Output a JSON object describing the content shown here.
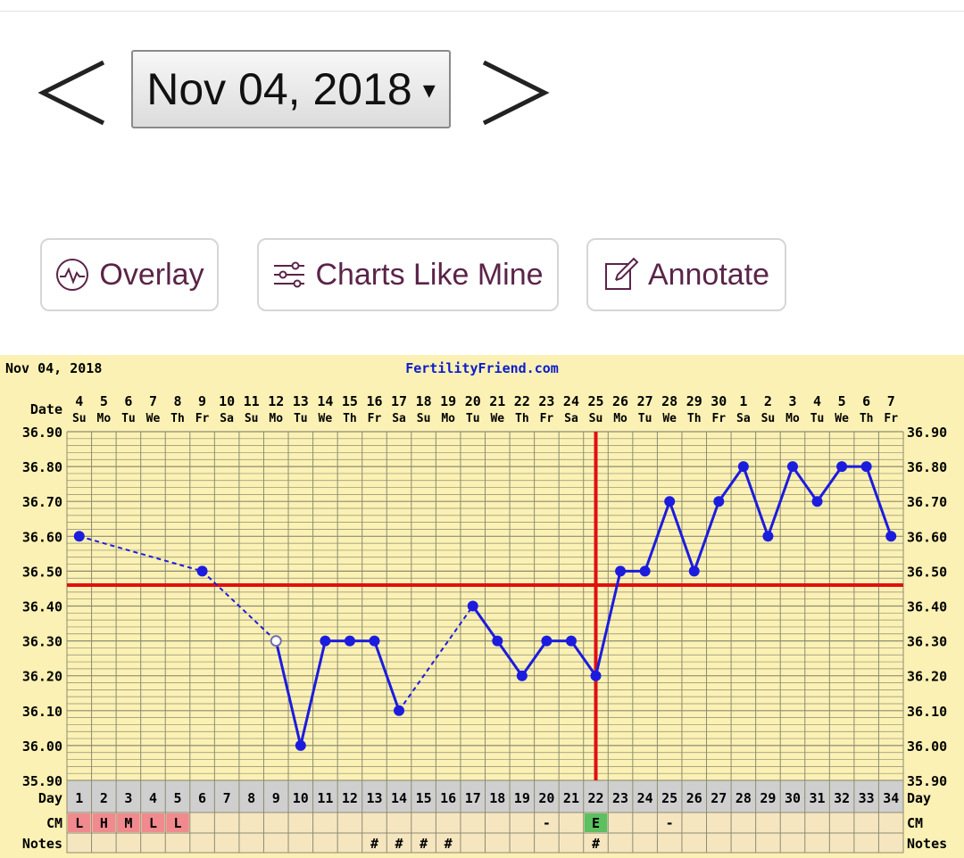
{
  "nav": {
    "date_label": "Nov 04, 2018",
    "caret": "▾",
    "prev_icon": "chevron-left-icon",
    "next_icon": "chevron-right-icon"
  },
  "toolbar": {
    "overlay_label": "Overlay",
    "charts_like_mine_label": "Charts Like Mine",
    "annotate_label": "Annotate",
    "text_color": "#5a2448"
  },
  "chart_data": {
    "type": "line",
    "title": "Nov 04, 2018",
    "brand": "FertilityFriend.com",
    "row_labels": {
      "date": "Date",
      "day": "Day",
      "cm": "CM",
      "notes": "Notes"
    },
    "dates": [
      "4",
      "5",
      "6",
      "7",
      "8",
      "9",
      "10",
      "11",
      "12",
      "13",
      "14",
      "15",
      "16",
      "17",
      "18",
      "19",
      "20",
      "21",
      "22",
      "23",
      "24",
      "25",
      "26",
      "27",
      "28",
      "29",
      "30",
      "1",
      "2",
      "3",
      "4",
      "5",
      "6",
      "7"
    ],
    "weekdays": [
      "Su",
      "Mo",
      "Tu",
      "We",
      "Th",
      "Fr",
      "Sa",
      "Su",
      "Mo",
      "Tu",
      "We",
      "Th",
      "Fr",
      "Sa",
      "Su",
      "Mo",
      "Tu",
      "We",
      "Th",
      "Fr",
      "Sa",
      "Su",
      "Mo",
      "Tu",
      "We",
      "Th",
      "Fr",
      "Sa",
      "Su",
      "Mo",
      "Tu",
      "We",
      "Th",
      "Fr"
    ],
    "days": [
      "1",
      "2",
      "3",
      "4",
      "5",
      "6",
      "7",
      "8",
      "9",
      "10",
      "11",
      "12",
      "13",
      "14",
      "15",
      "16",
      "17",
      "18",
      "19",
      "20",
      "21",
      "22",
      "23",
      "24",
      "25",
      "26",
      "27",
      "28",
      "29",
      "30",
      "31",
      "32",
      "33",
      "34"
    ],
    "y_ticks": [
      "36.90",
      "36.80",
      "36.70",
      "36.60",
      "36.50",
      "36.40",
      "36.30",
      "36.20",
      "36.10",
      "36.00",
      "35.90"
    ],
    "ylim": [
      35.9,
      36.9
    ],
    "points": [
      {
        "day": 1,
        "temp": 36.6
      },
      {
        "day": 6,
        "temp": 36.5
      },
      {
        "day": 9,
        "temp": 36.3,
        "open": true
      },
      {
        "day": 10,
        "temp": 36.0
      },
      {
        "day": 11,
        "temp": 36.3
      },
      {
        "day": 12,
        "temp": 36.3
      },
      {
        "day": 13,
        "temp": 36.3
      },
      {
        "day": 14,
        "temp": 36.1
      },
      {
        "day": 17,
        "temp": 36.4
      },
      {
        "day": 18,
        "temp": 36.3
      },
      {
        "day": 19,
        "temp": 36.2
      },
      {
        "day": 20,
        "temp": 36.3
      },
      {
        "day": 21,
        "temp": 36.3
      },
      {
        "day": 22,
        "temp": 36.2
      },
      {
        "day": 23,
        "temp": 36.5
      },
      {
        "day": 24,
        "temp": 36.5
      },
      {
        "day": 25,
        "temp": 36.7
      },
      {
        "day": 26,
        "temp": 36.5
      },
      {
        "day": 27,
        "temp": 36.7
      },
      {
        "day": 28,
        "temp": 36.8
      },
      {
        "day": 29,
        "temp": 36.6
      },
      {
        "day": 30,
        "temp": 36.8
      },
      {
        "day": 31,
        "temp": 36.7
      },
      {
        "day": 32,
        "temp": 36.8
      },
      {
        "day": 33,
        "temp": 36.8
      },
      {
        "day": 34,
        "temp": 36.6
      }
    ],
    "dashed_segments": [
      [
        1,
        6
      ],
      [
        6,
        9
      ],
      [
        14,
        17
      ]
    ],
    "coverline_temp": 36.46,
    "ovulation_day": 22,
    "cm": [
      {
        "day": 1,
        "label": "L",
        "color": "#f08a8e"
      },
      {
        "day": 2,
        "label": "H",
        "color": "#f08a8e"
      },
      {
        "day": 3,
        "label": "M",
        "color": "#f08a8e"
      },
      {
        "day": 4,
        "label": "L",
        "color": "#f08a8e"
      },
      {
        "day": 5,
        "label": "L",
        "color": "#f08a8e"
      },
      {
        "day": 20,
        "label": "-",
        "color": null
      },
      {
        "day": 22,
        "label": "E",
        "color": "#5cbf60"
      },
      {
        "day": 25,
        "label": "-",
        "color": null
      }
    ],
    "notes": [
      13,
      14,
      15,
      16,
      22
    ],
    "note_symbol": "#",
    "colors": {
      "background": "#fbf1b4",
      "grid": "#8c8c72",
      "line": "#1c1cde",
      "brand": "#0a1ccc",
      "coverline": "#e01010",
      "ovulation": "#e01010",
      "day_row": "#cfcfcf",
      "row_bg": "#f6e6c0",
      "text": "#000000"
    },
    "grid": true
  }
}
